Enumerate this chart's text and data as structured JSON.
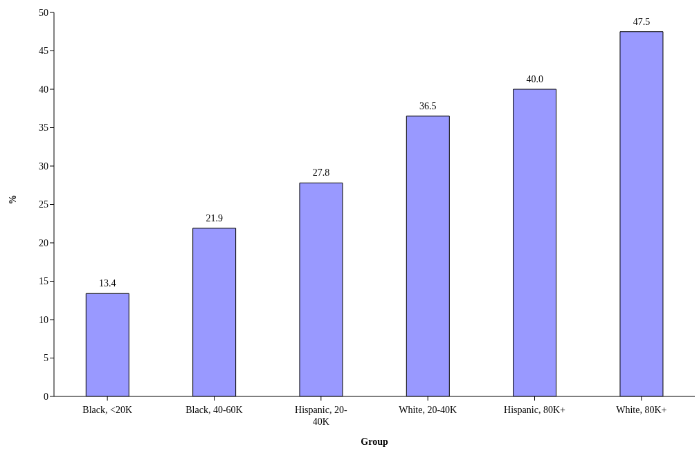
{
  "chart_data": {
    "type": "bar",
    "xlabel": "Group",
    "ylabel": "%",
    "categories": [
      "Black, <20K",
      "Black, 40-60K",
      "Hispanic, 20-40K",
      "White, 20-40K",
      "Hispanic, 80K+",
      "White, 80K+"
    ],
    "values": [
      13.4,
      21.9,
      27.8,
      36.5,
      40.0,
      47.5
    ],
    "value_labels": [
      "13.4",
      "21.9",
      "27.8",
      "36.5",
      "40.0",
      "47.5"
    ],
    "color": "#9999ff",
    "ylim": [
      0,
      50
    ],
    "yticks": [
      0,
      5,
      10,
      15,
      20,
      25,
      30,
      35,
      40,
      45,
      50
    ],
    "grid": false,
    "legend": false
  }
}
